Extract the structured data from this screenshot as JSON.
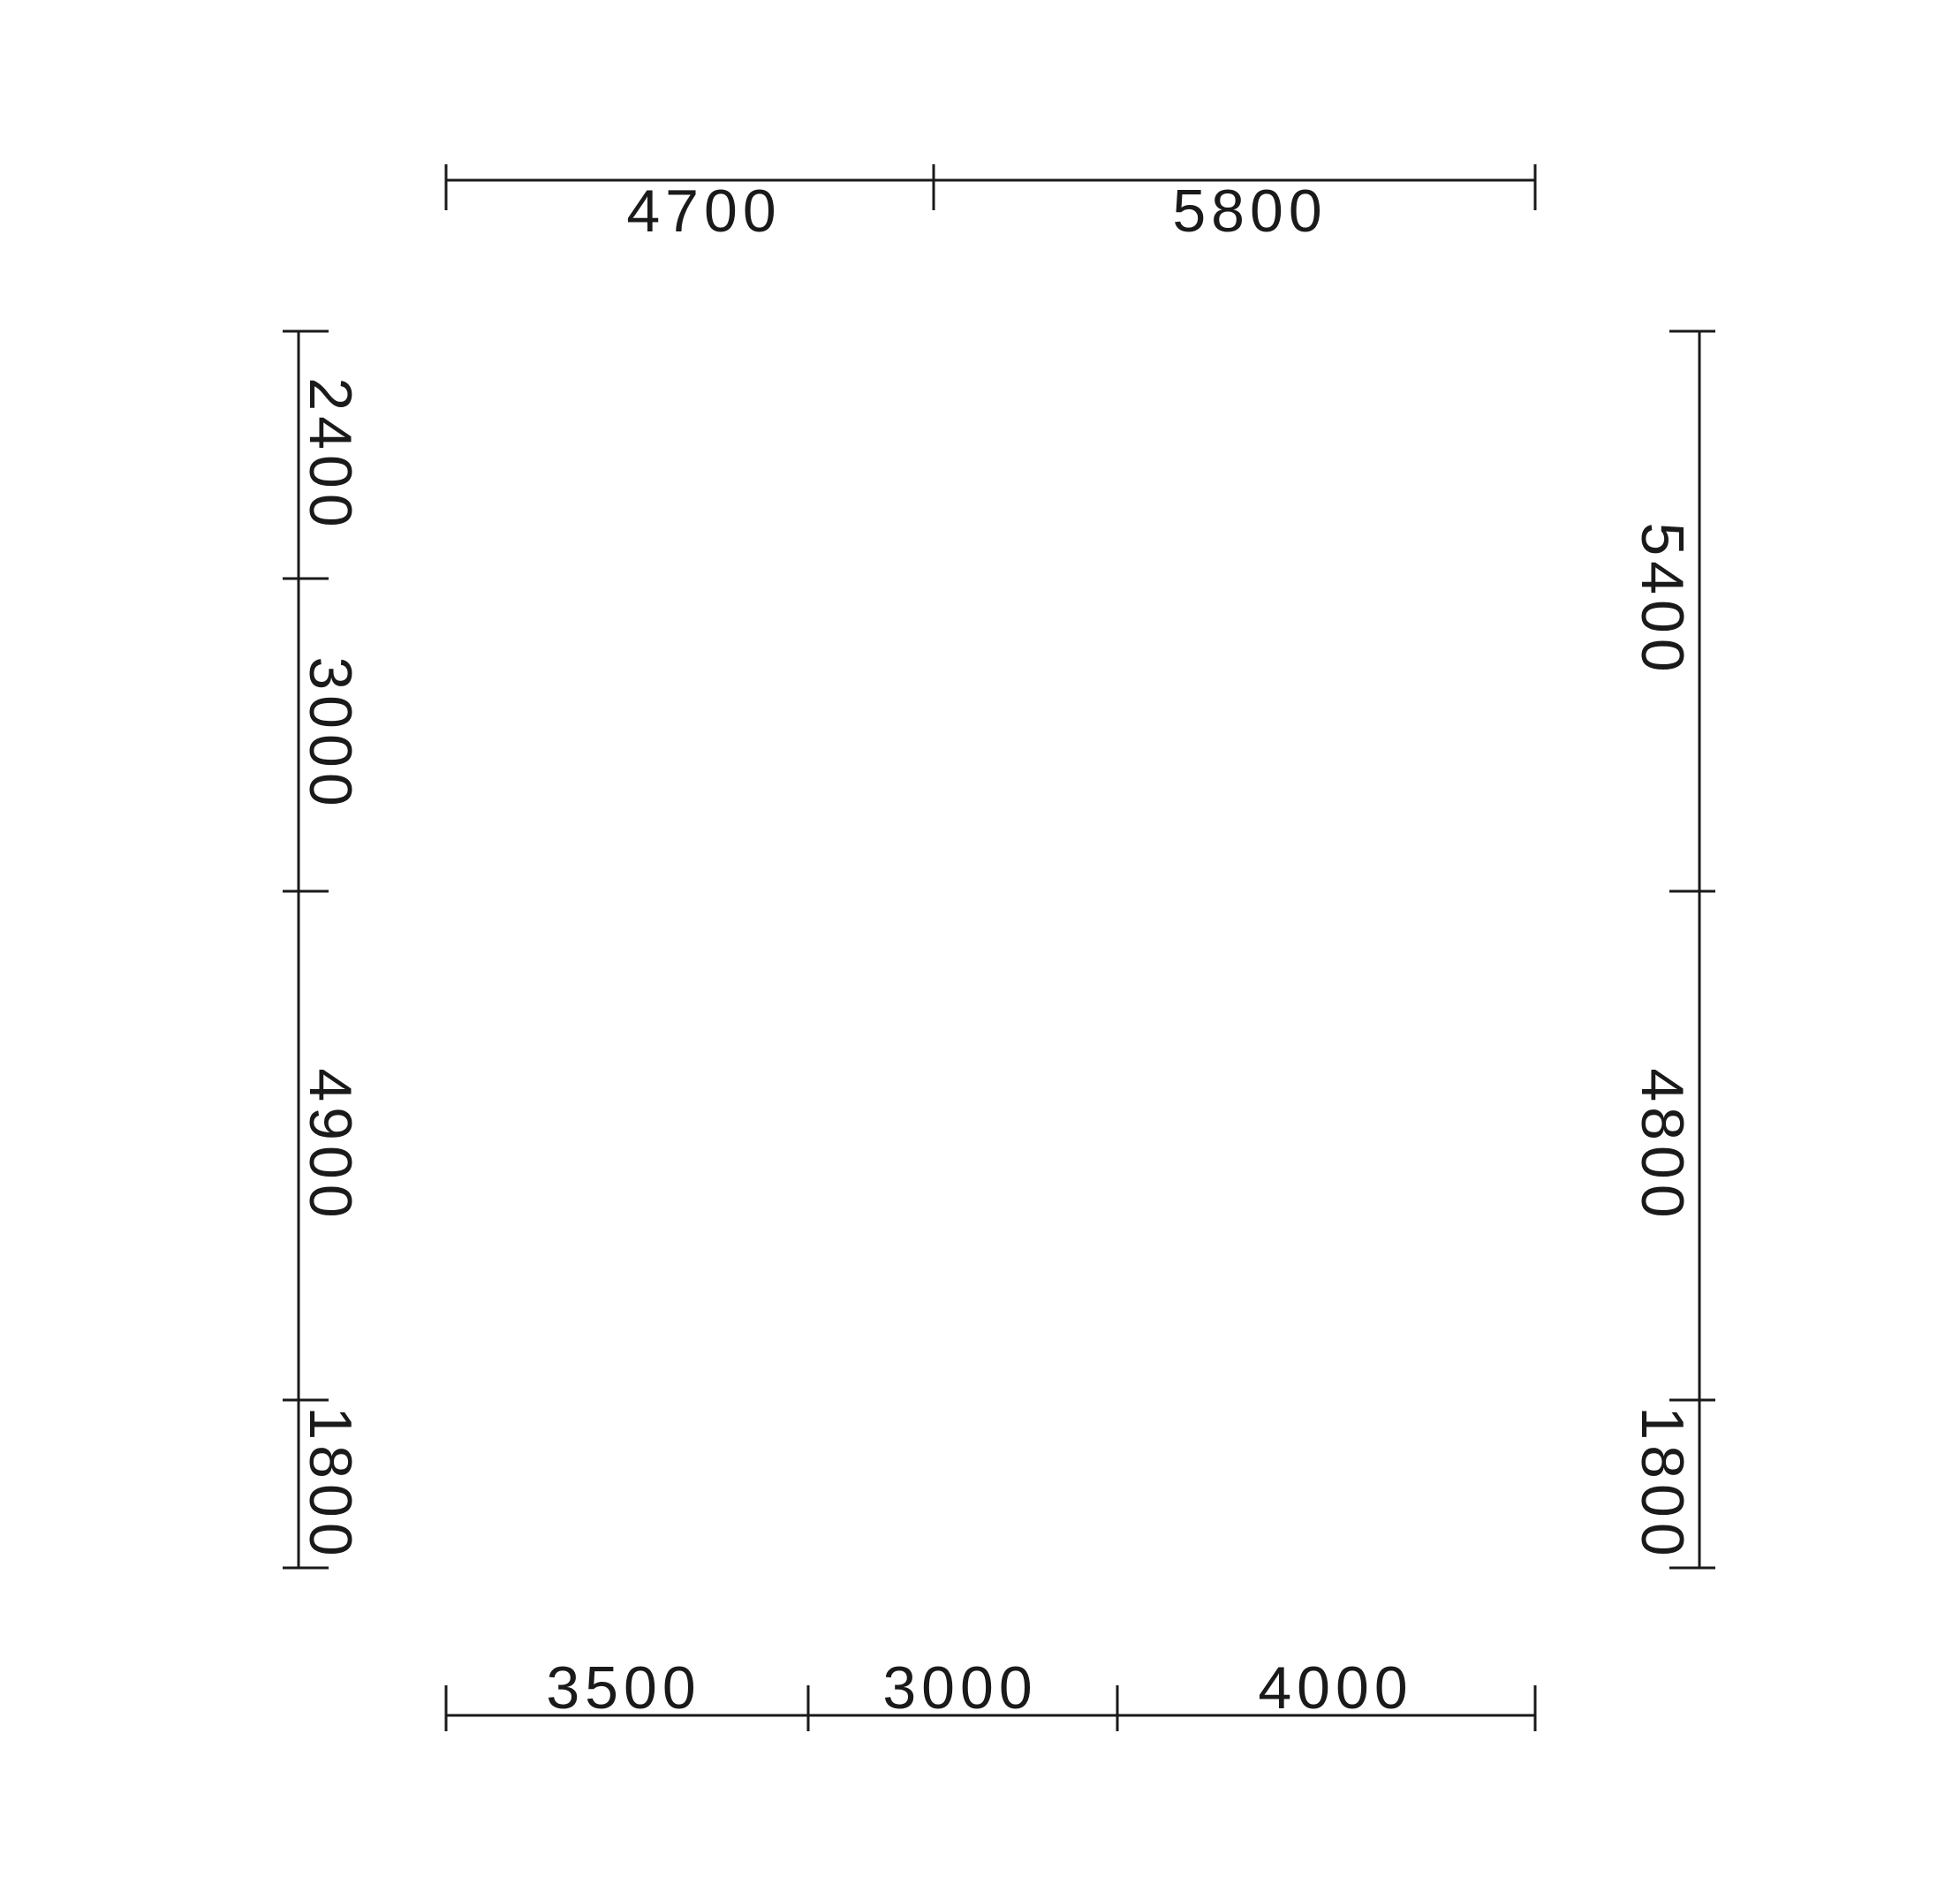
{
  "drawing": {
    "line_color": "#1a1a1a",
    "background": "#ffffff",
    "dimensions": {
      "top": [
        "4700",
        "5800"
      ],
      "bottom": [
        "3500",
        "3000",
        "4000"
      ],
      "left": [
        "2400",
        "3000",
        "4900",
        "1800"
      ],
      "right": [
        "5400",
        "4800",
        "1800"
      ]
    }
  }
}
